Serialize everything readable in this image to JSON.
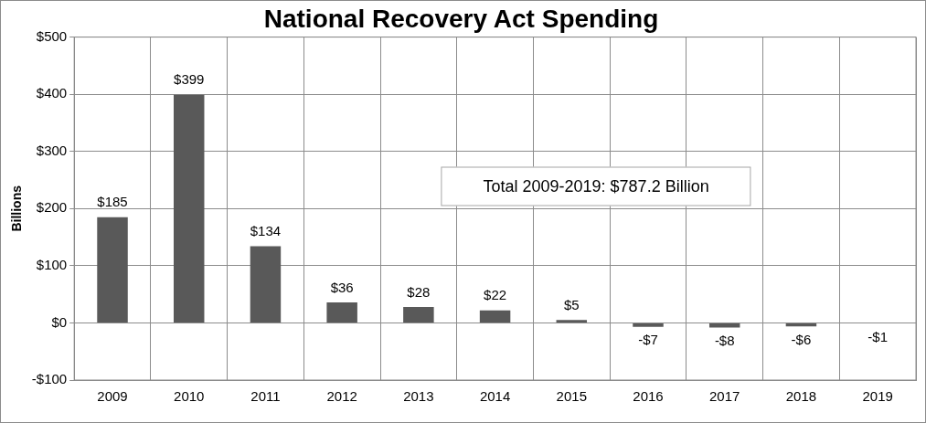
{
  "chart_data": {
    "type": "bar",
    "title": "National Recovery Act Spending",
    "ylabel": "Billions",
    "categories": [
      "2009",
      "2010",
      "2011",
      "2012",
      "2013",
      "2014",
      "2015",
      "2016",
      "2017",
      "2018",
      "2019"
    ],
    "values": [
      185,
      399,
      134,
      36,
      28,
      22,
      5,
      -7,
      -8,
      -6,
      -1
    ],
    "value_labels": [
      "$185",
      "$399",
      "$134",
      "$36",
      "$28",
      "$22",
      "$5",
      "-$7",
      "-$8",
      "-$6",
      "-$1"
    ],
    "color": "#595959",
    "ylim": [
      -100,
      500
    ],
    "yticks": [
      {
        "value": -100,
        "label": "-$100"
      },
      {
        "value": 0,
        "label": "$0"
      },
      {
        "value": 100,
        "label": "$100"
      },
      {
        "value": 200,
        "label": "$200"
      },
      {
        "value": 300,
        "label": "$300"
      },
      {
        "value": 400,
        "label": "$400"
      },
      {
        "value": 500,
        "label": "$500"
      }
    ],
    "grid": true,
    "annotations": [
      "Total 2009-2019: $787.2 Billion"
    ]
  }
}
